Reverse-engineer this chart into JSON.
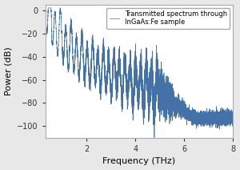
{
  "title": "",
  "xlabel": "Frequency (THz)",
  "ylabel": "Power (dB)",
  "legend_label": "Transmitted spectrum through\nInGaAs:Fe sample",
  "line_color": "#4472a8",
  "xlim": [
    0.3,
    8.0
  ],
  "ylim": [
    -110,
    5
  ],
  "yticks": [
    0,
    -20,
    -40,
    -60,
    -80,
    -100
  ],
  "xticks": [
    2,
    4,
    6,
    8
  ],
  "figsize": [
    3.0,
    2.12
  ],
  "dpi": 100,
  "background_color": "#e8e8e8",
  "axes_background": "#ffffff"
}
